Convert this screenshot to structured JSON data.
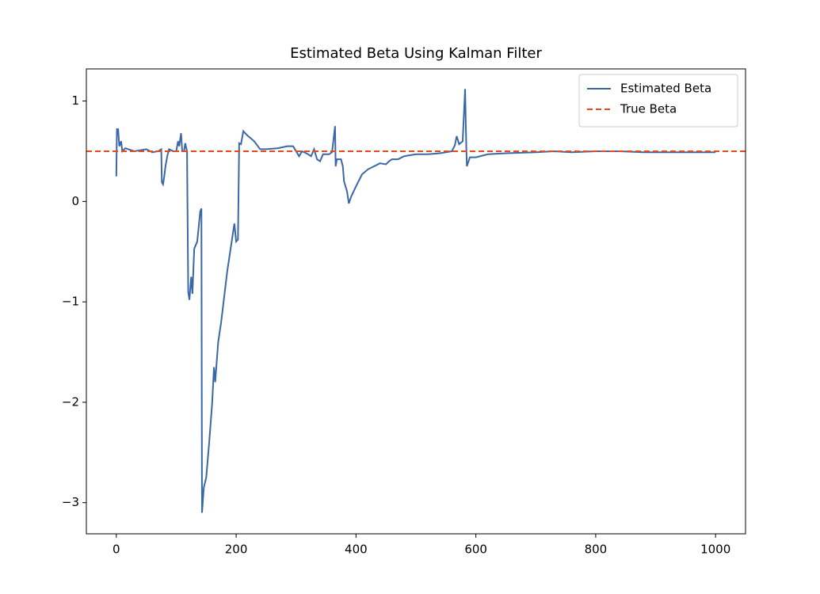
{
  "chart_data": {
    "type": "line",
    "title": "Estimated Beta Using Kalman Filter",
    "xlim": [
      -50,
      1050
    ],
    "ylim": [
      -3.31,
      1.32
    ],
    "xticks": [
      0,
      200,
      400,
      600,
      800,
      1000
    ],
    "yticks": [
      {
        "value": -3,
        "label": "−3"
      },
      {
        "value": -2,
        "label": "−2"
      },
      {
        "value": -1,
        "label": "−1"
      },
      0,
      1
    ],
    "legend": "upper right",
    "series": [
      {
        "name": "Estimated Beta",
        "color": "#3a68a6",
        "style": "solid",
        "x": [
          0,
          1,
          3,
          5,
          8,
          10,
          15,
          20,
          30,
          40,
          50,
          60,
          70,
          75,
          76,
          78,
          80,
          82,
          85,
          88,
          95,
          100,
          103,
          105,
          108,
          110,
          113,
          115,
          118,
          120,
          122,
          125,
          127,
          130,
          135,
          140,
          142,
          143,
          146,
          150,
          155,
          160,
          163,
          165,
          170,
          175,
          180,
          185,
          190,
          195,
          197,
          200,
          203,
          205,
          208,
          212,
          215,
          220,
          230,
          240,
          250,
          270,
          285,
          295,
          305,
          310,
          320,
          325,
          330,
          335,
          340,
          345,
          355,
          360,
          365,
          366,
          368,
          375,
          378,
          380,
          385,
          388,
          392,
          400,
          410,
          420,
          430,
          440,
          450,
          455,
          460,
          470,
          480,
          500,
          520,
          540,
          560,
          565,
          568,
          572,
          578,
          582,
          584,
          585,
          590,
          600,
          620,
          650,
          700,
          730,
          760,
          800,
          840,
          880,
          920,
          960,
          1000
        ],
        "values": [
          0.25,
          0.72,
          0.72,
          0.55,
          0.6,
          0.5,
          0.53,
          0.52,
          0.5,
          0.51,
          0.52,
          0.49,
          0.5,
          0.52,
          0.19,
          0.17,
          0.25,
          0.35,
          0.45,
          0.52,
          0.5,
          0.5,
          0.6,
          0.55,
          0.68,
          0.5,
          0.5,
          0.58,
          0.5,
          -0.9,
          -0.98,
          -0.75,
          -0.92,
          -0.47,
          -0.4,
          -0.1,
          -0.07,
          -3.1,
          -2.85,
          -2.75,
          -2.4,
          -2.0,
          -1.65,
          -1.8,
          -1.4,
          -1.2,
          -0.95,
          -0.7,
          -0.5,
          -0.3,
          -0.22,
          -0.4,
          -0.38,
          0.58,
          0.57,
          0.7,
          0.68,
          0.65,
          0.6,
          0.52,
          0.52,
          0.53,
          0.55,
          0.55,
          0.45,
          0.5,
          0.47,
          0.45,
          0.52,
          0.42,
          0.4,
          0.47,
          0.47,
          0.49,
          0.75,
          0.35,
          0.42,
          0.42,
          0.35,
          0.2,
          0.1,
          -0.02,
          0.05,
          0.15,
          0.27,
          0.32,
          0.35,
          0.38,
          0.37,
          0.4,
          0.42,
          0.42,
          0.45,
          0.47,
          0.47,
          0.48,
          0.5,
          0.56,
          0.65,
          0.57,
          0.6,
          1.12,
          0.55,
          0.35,
          0.44,
          0.44,
          0.47,
          0.48,
          0.49,
          0.5,
          0.49,
          0.5,
          0.5,
          0.49,
          0.49,
          0.49,
          0.49
        ]
      },
      {
        "name": "True Beta",
        "color": "#e8481c",
        "style": "dashed",
        "x": [
          -50,
          1050
        ],
        "values": [
          0.5,
          0.5
        ]
      }
    ]
  }
}
